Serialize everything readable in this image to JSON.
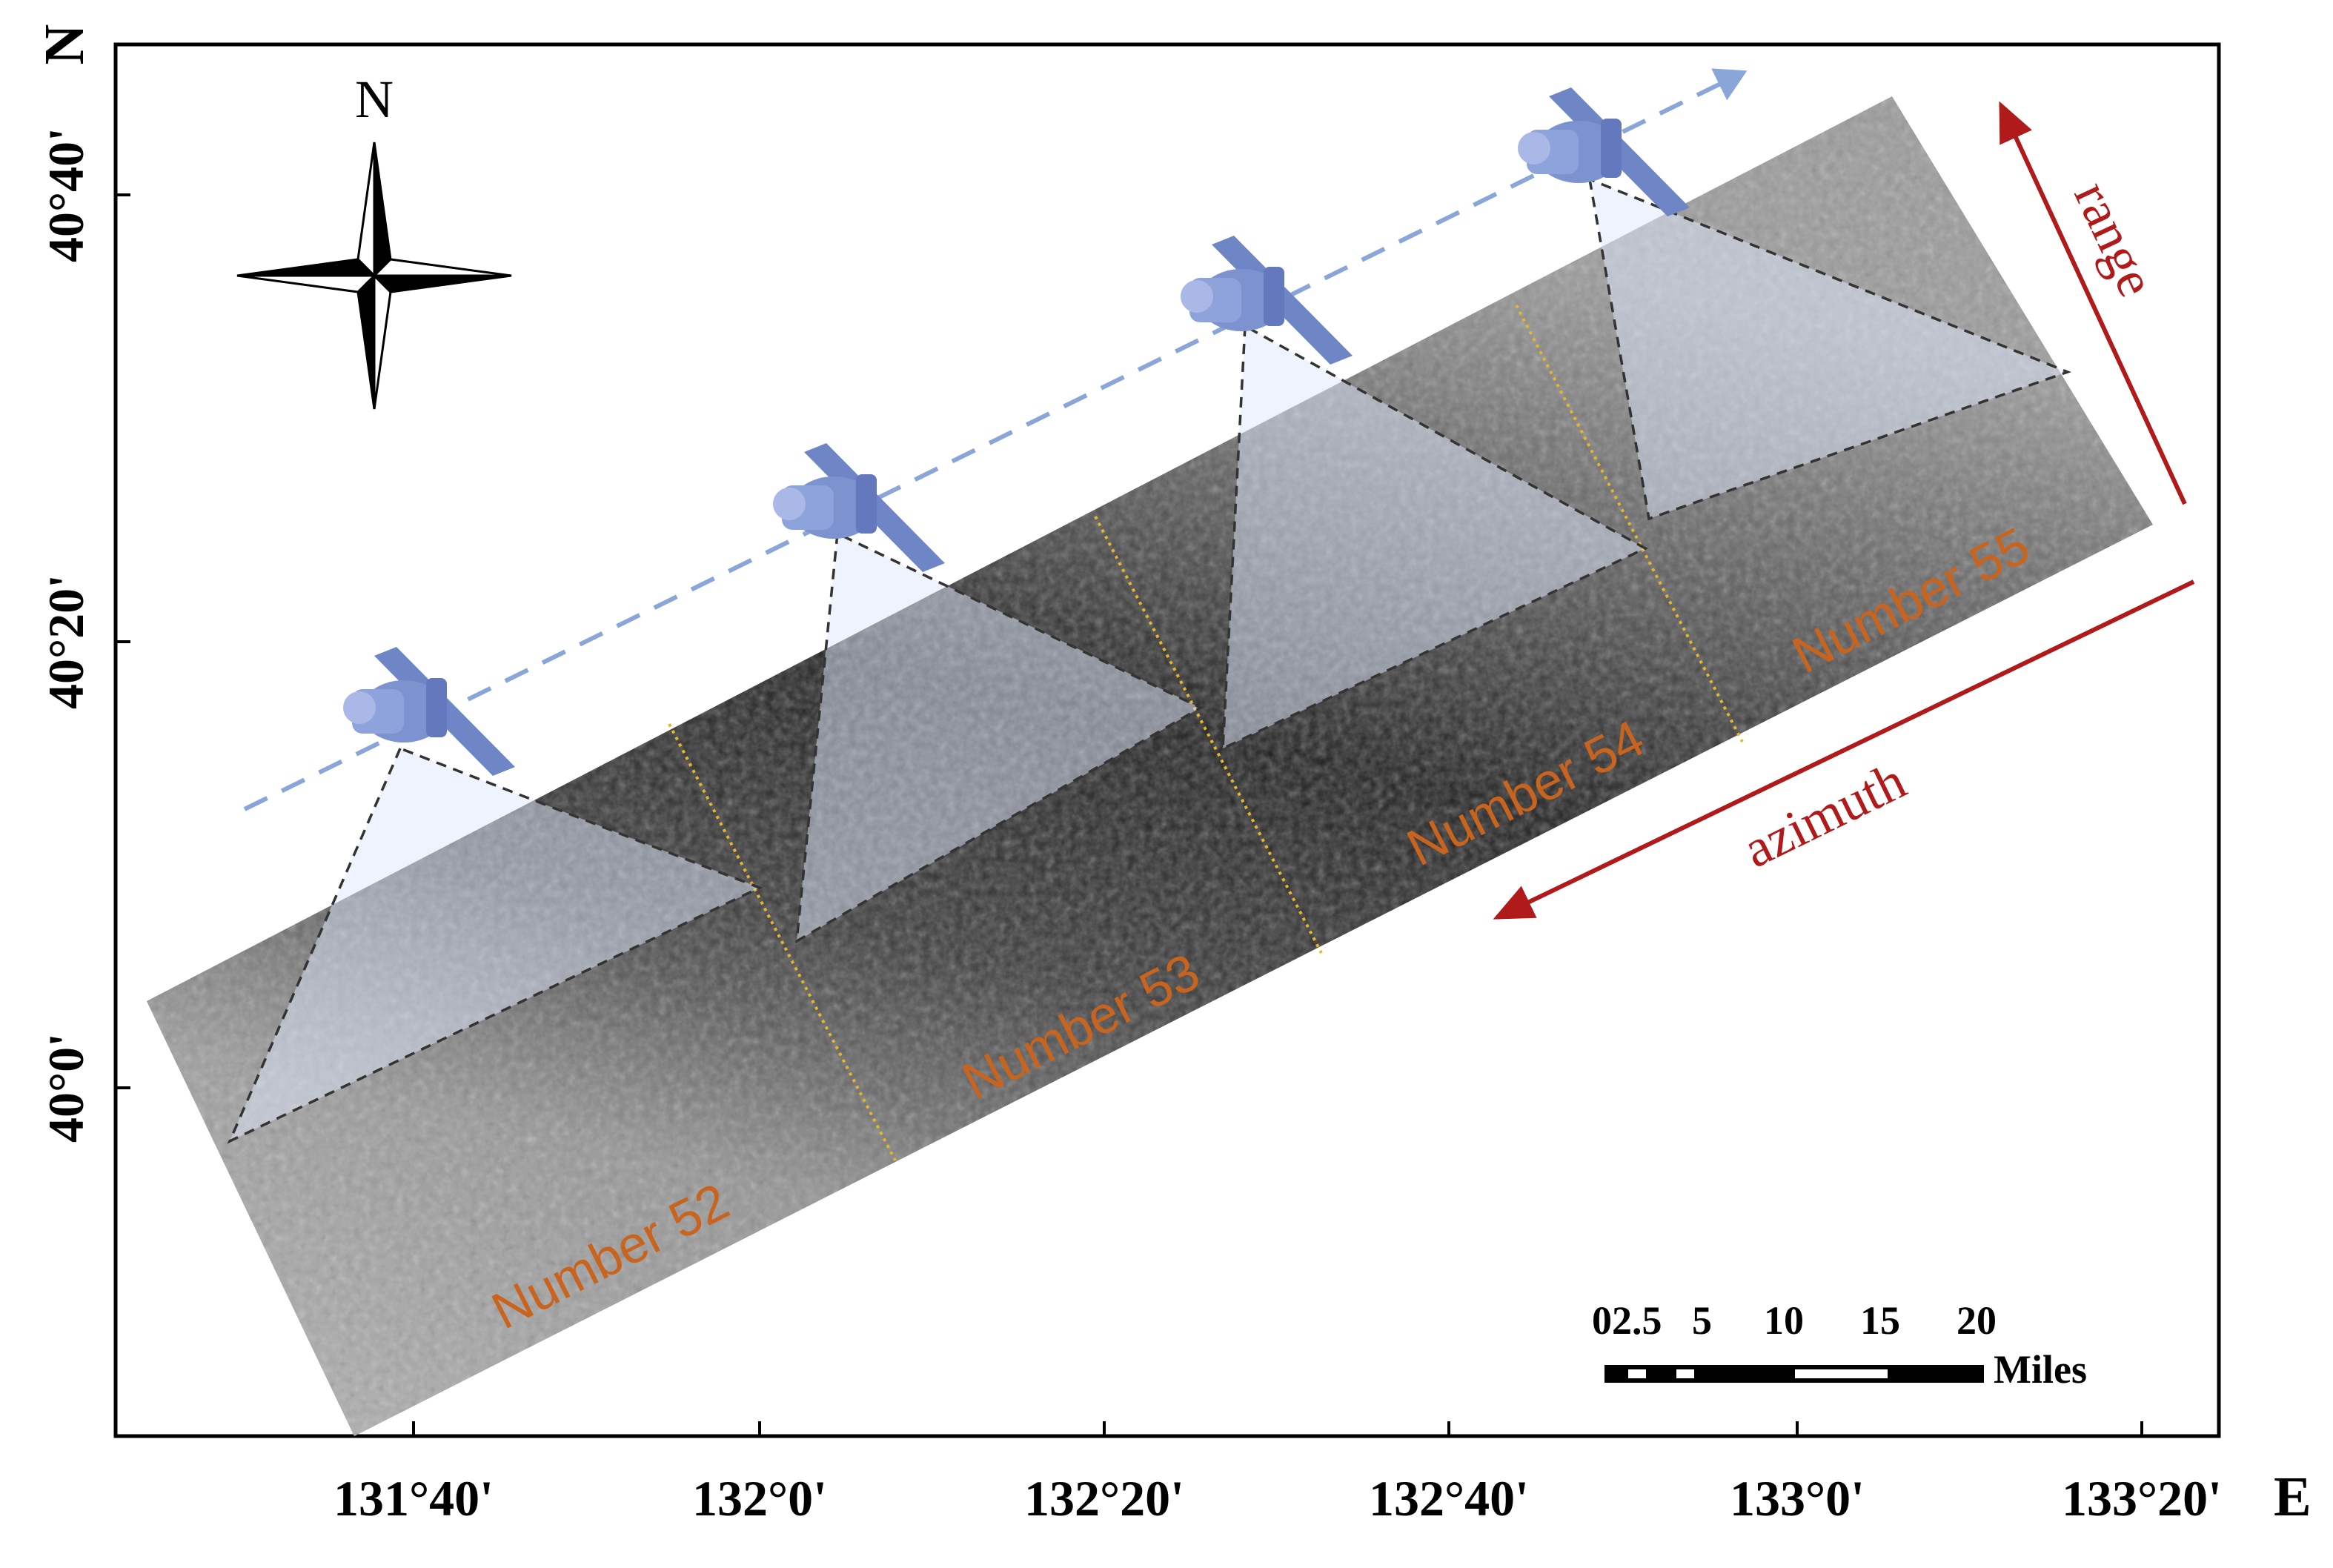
{
  "map": {
    "axes": {
      "x_ticks": [
        "131°40'",
        "132°0'",
        "132°20'",
        "132°40'",
        "133°0'",
        "133°20'"
      ],
      "y_ticks": [
        "40°0'",
        "40°20'",
        "40°40'"
      ],
      "x_letter": "E",
      "y_letter": "N"
    },
    "north_arrow": {
      "label": "N"
    },
    "frames": [
      "Number 52",
      "Number 53",
      "Number 54",
      "Number 55"
    ],
    "directions": {
      "range": "range",
      "azimuth": "azimuth"
    },
    "scale_bar": {
      "tick_labels": [
        "0",
        "2.5",
        "5",
        "10",
        "15",
        "20"
      ],
      "unit": "Miles"
    },
    "colors": {
      "frame_label": "#c8641e",
      "direction_arrow": "#b01a1a",
      "flight_path": "#8aa6d8",
      "satellite": "#6f86c6",
      "frame_boundary": "#e6b52c"
    },
    "icons": [
      "north-arrow-icon",
      "satellite-icon"
    ]
  }
}
